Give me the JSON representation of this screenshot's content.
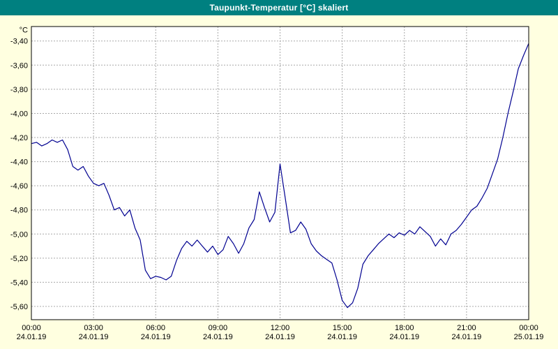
{
  "window": {
    "title": "Taupunkt-Temperatur [°C] skaliert"
  },
  "colors": {
    "background": "#FFFFE0",
    "titlebar": "#008080",
    "title_text": "#FFFFFF",
    "plot_background": "#FFFFFF",
    "plot_border": "#000000",
    "grid": "#A8A8A8",
    "line": "#000090",
    "tick_text": "#000000"
  },
  "chart_data": {
    "type": "line",
    "title": "Taupunkt-Temperatur [°C] skaliert",
    "xlabel": "",
    "ylabel": "°C",
    "y_unit_label": "°C",
    "grid": true,
    "legend": "none",
    "ylim": [
      -5.71,
      -3.28
    ],
    "y_ticks": [
      {
        "label": "-3,40",
        "value": -3.4
      },
      {
        "label": "-3,60",
        "value": -3.6
      },
      {
        "label": "-3,80",
        "value": -3.8
      },
      {
        "label": "-4,00",
        "value": -4.0
      },
      {
        "label": "-4,20",
        "value": -4.2
      },
      {
        "label": "-4,40",
        "value": -4.4
      },
      {
        "label": "-4,60",
        "value": -4.6
      },
      {
        "label": "-4,80",
        "value": -4.8
      },
      {
        "label": "-5,00",
        "value": -5.0
      },
      {
        "label": "-5,20",
        "value": -5.2
      },
      {
        "label": "-5,40",
        "value": -5.4
      },
      {
        "label": "-5,60",
        "value": -5.6
      }
    ],
    "x_ticks": [
      {
        "time": "00:00",
        "date": "24.01.19",
        "hour": 0
      },
      {
        "time": "03:00",
        "date": "24.01.19",
        "hour": 3
      },
      {
        "time": "06:00",
        "date": "24.01.19",
        "hour": 6
      },
      {
        "time": "09:00",
        "date": "24.01.19",
        "hour": 9
      },
      {
        "time": "12:00",
        "date": "24.01.19",
        "hour": 12
      },
      {
        "time": "15:00",
        "date": "24.01.19",
        "hour": 15
      },
      {
        "time": "18:00",
        "date": "24.01.19",
        "hour": 18
      },
      {
        "time": "21:00",
        "date": "24.01.19",
        "hour": 21
      },
      {
        "time": "00:00",
        "date": "25.01.19",
        "hour": 24
      }
    ],
    "x_sampling": {
      "start_hour": 0,
      "end_hour": 24,
      "step_hours": 0.25
    },
    "series": [
      {
        "name": "Taupunkt-Temperatur",
        "values": [
          -4.25,
          -4.24,
          -4.27,
          -4.25,
          -4.22,
          -4.24,
          -4.22,
          -4.3,
          -4.44,
          -4.47,
          -4.44,
          -4.52,
          -4.58,
          -4.6,
          -4.58,
          -4.68,
          -4.8,
          -4.78,
          -4.85,
          -4.8,
          -4.95,
          -5.05,
          -5.3,
          -5.37,
          -5.35,
          -5.36,
          -5.38,
          -5.35,
          -5.22,
          -5.12,
          -5.06,
          -5.1,
          -5.05,
          -5.1,
          -5.15,
          -5.1,
          -5.17,
          -5.13,
          -5.02,
          -5.08,
          -5.16,
          -5.08,
          -4.95,
          -4.88,
          -4.65,
          -4.78,
          -4.9,
          -4.82,
          -4.42,
          -4.7,
          -4.99,
          -4.97,
          -4.9,
          -4.96,
          -5.08,
          -5.14,
          -5.18,
          -5.21,
          -5.24,
          -5.38,
          -5.55,
          -5.61,
          -5.57,
          -5.45,
          -5.25,
          -5.18,
          -5.13,
          -5.08,
          -5.04,
          -5.0,
          -5.03,
          -4.99,
          -5.01,
          -4.97,
          -5.0,
          -4.94,
          -4.98,
          -5.02,
          -5.1,
          -5.04,
          -5.09,
          -5.0,
          -4.97,
          -4.92,
          -4.86,
          -4.8,
          -4.77,
          -4.7,
          -4.62,
          -4.5,
          -4.38,
          -4.2,
          -4.0,
          -3.82,
          -3.63,
          -3.52,
          -3.42
        ]
      }
    ]
  }
}
